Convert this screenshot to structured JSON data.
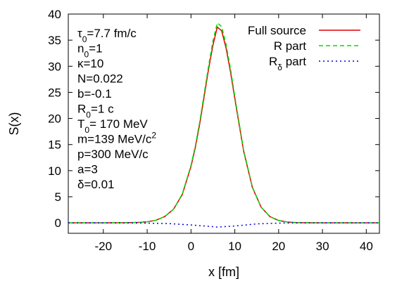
{
  "chart_data": {
    "type": "line",
    "xlabel": "x [fm]",
    "ylabel": "S(x)",
    "xlim": [
      -28,
      43
    ],
    "ylim": [
      -2,
      40
    ],
    "xticks": [
      -20,
      -10,
      0,
      10,
      20,
      30,
      40
    ],
    "yticks": [
      0,
      5,
      10,
      15,
      20,
      25,
      30,
      35,
      40
    ],
    "grid": false,
    "legend_position": "top-right",
    "series": [
      {
        "name": "Full source",
        "color": "#e00000",
        "dash": "solid",
        "x": [
          -28,
          -20,
          -15,
          -12,
          -10,
          -8,
          -6,
          -4,
          -2,
          0,
          1,
          2,
          3,
          4,
          5,
          6,
          7,
          8,
          9,
          10,
          12,
          14,
          16,
          18,
          20,
          22,
          24,
          26,
          30,
          35,
          43
        ],
        "y": [
          0,
          0,
          0.02,
          0.08,
          0.2,
          0.5,
          1.2,
          2.6,
          5.4,
          10.8,
          14.5,
          19.0,
          24.2,
          29.4,
          34.0,
          37.5,
          36.8,
          33.5,
          29.0,
          23.8,
          13.8,
          6.8,
          3.0,
          1.2,
          0.45,
          0.15,
          0.05,
          0.02,
          0,
          0,
          0
        ]
      },
      {
        "name": "R part",
        "color": "#00dd00",
        "dash": "dashed",
        "x": [
          -28,
          -20,
          -15,
          -12,
          -10,
          -8,
          -6,
          -4,
          -2,
          0,
          1,
          2,
          3,
          4,
          5,
          6,
          7,
          8,
          9,
          10,
          12,
          14,
          16,
          18,
          20,
          22,
          24,
          26,
          30,
          35,
          43
        ],
        "y": [
          0,
          0,
          0.02,
          0.08,
          0.2,
          0.5,
          1.2,
          2.6,
          5.5,
          11.0,
          14.8,
          19.4,
          24.7,
          30.0,
          34.8,
          38.3,
          37.6,
          34.2,
          29.6,
          24.2,
          14.0,
          6.9,
          3.0,
          1.2,
          0.45,
          0.15,
          0.05,
          0.02,
          0,
          0,
          0
        ]
      },
      {
        "name": "Rδ part",
        "color": "#0000dd",
        "dash": "dotted",
        "x": [
          -28,
          -20,
          -15,
          -10,
          -5,
          0,
          3,
          6,
          8,
          10,
          15,
          20,
          25,
          30,
          43
        ],
        "y": [
          0,
          0,
          -0.01,
          -0.05,
          -0.15,
          -0.4,
          -0.6,
          -0.8,
          -0.7,
          -0.6,
          -0.2,
          -0.05,
          0,
          0,
          0
        ]
      }
    ],
    "legend": [
      {
        "label": "Full source",
        "main": "Full source",
        "sub": "",
        "tail": ""
      },
      {
        "label": "R part",
        "main": "R part",
        "sub": "",
        "tail": ""
      },
      {
        "label": "Rδ part",
        "main": "R",
        "sub": "δ",
        "tail": " part"
      }
    ],
    "annotations": [
      {
        "text": "τ0=7.7 fm/c",
        "main": "τ",
        "sub": "0",
        "tail": "=7.7 fm/c",
        "sup": ""
      },
      {
        "text": "n0=1",
        "main": "n",
        "sub": "0",
        "tail": "=1",
        "sup": ""
      },
      {
        "text": "κ=10",
        "main": "κ=10",
        "sub": "",
        "tail": "",
        "sup": ""
      },
      {
        "text": "N=0.022",
        "main": "N=0.022",
        "sub": "",
        "tail": "",
        "sup": ""
      },
      {
        "text": "b=-0.1",
        "main": "b=-0.1",
        "sub": "",
        "tail": "",
        "sup": ""
      },
      {
        "text": "R0=1 c",
        "main": "R",
        "sub": "0",
        "tail": "=1 c",
        "sup": ""
      },
      {
        "text": "T0= 170 MeV",
        "main": "T",
        "sub": "0",
        "tail": "= 170 MeV",
        "sup": ""
      },
      {
        "text": "m=139 MeV/c2",
        "main": "m=139 MeV/c",
        "sub": "",
        "tail": "",
        "sup": "2"
      },
      {
        "text": "p=300 MeV/c",
        "main": "p=300 MeV/c",
        "sub": "",
        "tail": "",
        "sup": ""
      },
      {
        "text": "a=3",
        "main": "a=3",
        "sub": "",
        "tail": "",
        "sup": ""
      },
      {
        "text": "δ=0.01",
        "main": "δ=0.01",
        "sub": "",
        "tail": "",
        "sup": ""
      }
    ]
  }
}
